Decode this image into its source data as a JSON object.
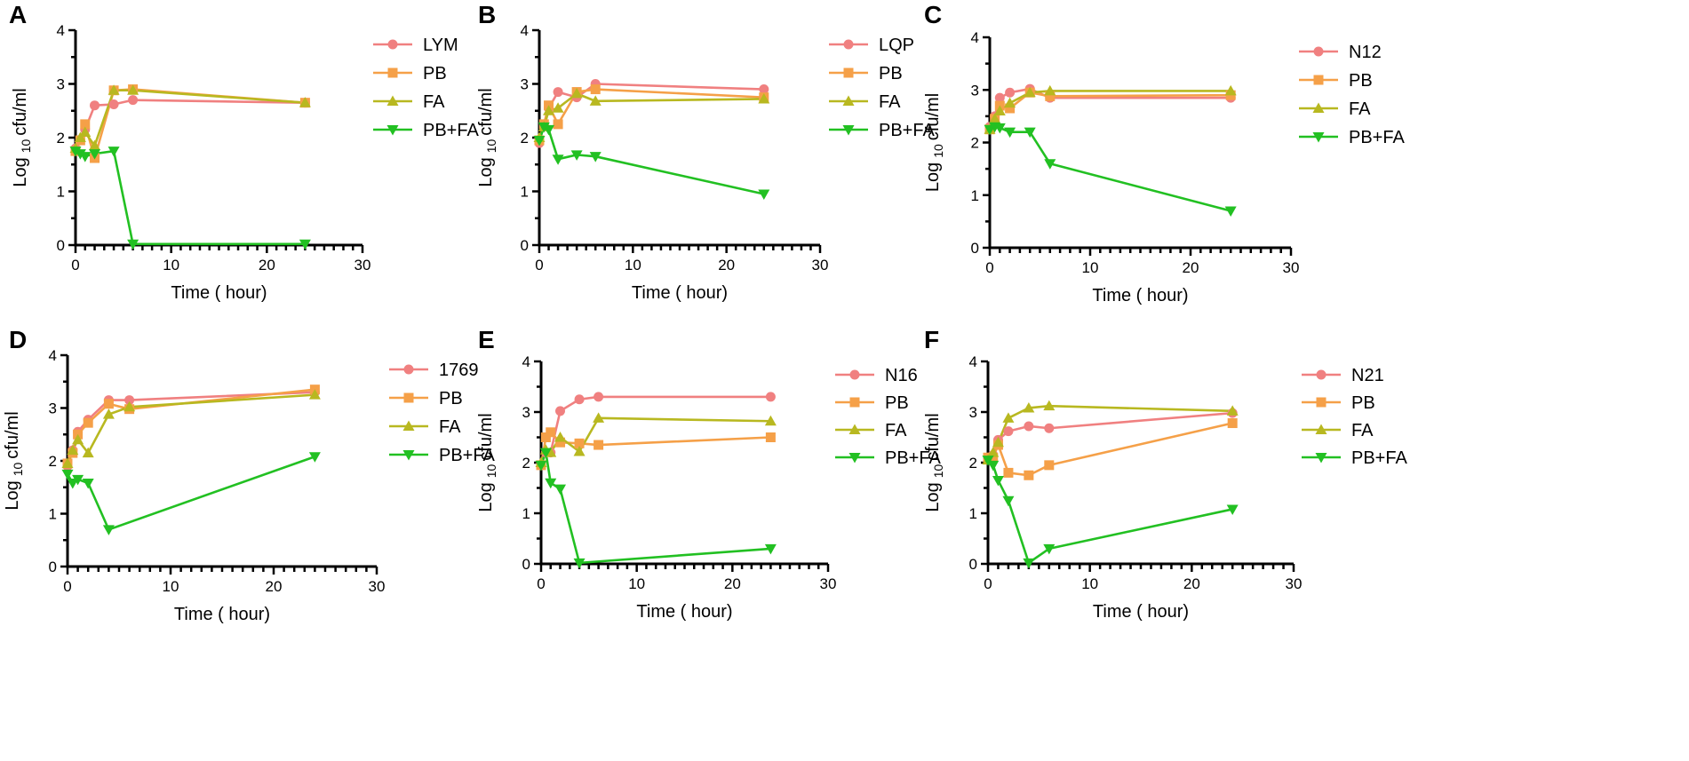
{
  "colors": {
    "strain": "#f08080",
    "pb": "#f5a048",
    "fa": "#b8b820",
    "pbfa": "#22c022"
  },
  "chart_data": [
    {
      "type": "line",
      "panel": "A",
      "xlabel": "Time ( hour)",
      "ylabel_prefix": "Log",
      "ylabel_sub": "10",
      "ylabel_suffix": "cfu/ml",
      "xlim": [
        0,
        30
      ],
      "ylim": [
        0,
        4
      ],
      "xticks": [
        0,
        10,
        20,
        30
      ],
      "yticks": [
        0,
        1,
        2,
        3,
        4
      ],
      "series": [
        {
          "name": "LYM",
          "marker": "circle",
          "color": "#f08080",
          "x": [
            0,
            0.5,
            1,
            2,
            4,
            6,
            24
          ],
          "y": [
            1.8,
            1.95,
            2.15,
            2.6,
            2.62,
            2.7,
            2.65
          ]
        },
        {
          "name": "PB",
          "marker": "square",
          "color": "#f5a048",
          "x": [
            0,
            0.5,
            1,
            2,
            4,
            6,
            24
          ],
          "y": [
            1.75,
            1.95,
            2.25,
            1.62,
            2.88,
            2.9,
            2.65
          ]
        },
        {
          "name": "FA",
          "marker": "triangle-up",
          "color": "#b8b820",
          "x": [
            0,
            0.5,
            1,
            2,
            4,
            6,
            24
          ],
          "y": [
            1.8,
            2.0,
            2.1,
            1.85,
            2.88,
            2.88,
            2.65
          ]
        },
        {
          "name": "PB+FA",
          "marker": "triangle-down",
          "color": "#22c022",
          "x": [
            0,
            0.5,
            1,
            2,
            4,
            6,
            24
          ],
          "y": [
            1.75,
            1.7,
            1.65,
            1.7,
            1.75,
            0.02,
            0.02
          ]
        }
      ]
    },
    {
      "type": "line",
      "panel": "B",
      "xlabel": "Time ( hour)",
      "ylabel_prefix": "Log",
      "ylabel_sub": "10",
      "ylabel_suffix": "cfu/ml",
      "xlim": [
        0,
        30
      ],
      "ylim": [
        0,
        4
      ],
      "xticks": [
        0,
        10,
        20,
        30
      ],
      "yticks": [
        0,
        1,
        2,
        3,
        4
      ],
      "series": [
        {
          "name": "LQP",
          "marker": "circle",
          "color": "#f08080",
          "x": [
            0,
            0.5,
            1,
            2,
            4,
            6,
            24
          ],
          "y": [
            1.9,
            2.25,
            2.55,
            2.85,
            2.75,
            3.0,
            2.9
          ]
        },
        {
          "name": "PB",
          "marker": "square",
          "color": "#f5a048",
          "x": [
            0,
            0.5,
            1,
            2,
            4,
            6,
            24
          ],
          "y": [
            1.95,
            2.25,
            2.6,
            2.25,
            2.85,
            2.9,
            2.75
          ]
        },
        {
          "name": "FA",
          "marker": "triangle-up",
          "color": "#b8b820",
          "x": [
            0,
            0.5,
            1,
            2,
            4,
            6,
            24
          ],
          "y": [
            2.0,
            2.2,
            2.5,
            2.55,
            2.82,
            2.68,
            2.72
          ]
        },
        {
          "name": "PB+FA",
          "marker": "triangle-down",
          "color": "#22c022",
          "x": [
            0,
            0.5,
            1,
            2,
            4,
            6,
            24
          ],
          "y": [
            1.95,
            2.2,
            2.15,
            1.6,
            1.68,
            1.65,
            0.95
          ]
        }
      ]
    },
    {
      "type": "line",
      "panel": "C",
      "xlabel": "Time ( hour)",
      "ylabel_prefix": "Log",
      "ylabel_sub": "10",
      "ylabel_suffix": "cfu/ml",
      "xlim": [
        0,
        30
      ],
      "ylim": [
        0,
        4
      ],
      "xticks": [
        0,
        10,
        20,
        30
      ],
      "yticks": [
        0,
        1,
        2,
        3,
        4
      ],
      "series": [
        {
          "name": "N12",
          "marker": "circle",
          "color": "#f08080",
          "x": [
            0,
            0.5,
            1,
            2,
            4,
            6,
            24
          ],
          "y": [
            2.3,
            2.5,
            2.85,
            2.95,
            3.02,
            2.85,
            2.85
          ]
        },
        {
          "name": "PB",
          "marker": "square",
          "color": "#f5a048",
          "x": [
            0,
            0.5,
            1,
            2,
            4,
            6,
            24
          ],
          "y": [
            2.25,
            2.45,
            2.7,
            2.65,
            2.95,
            2.88,
            2.9
          ]
        },
        {
          "name": "FA",
          "marker": "triangle-up",
          "color": "#b8b820",
          "x": [
            0,
            0.5,
            1,
            2,
            4,
            6,
            24
          ],
          "y": [
            2.25,
            2.45,
            2.6,
            2.75,
            2.95,
            2.98,
            2.98
          ]
        },
        {
          "name": "PB+FA",
          "marker": "triangle-down",
          "color": "#22c022",
          "x": [
            0,
            0.5,
            1,
            2,
            4,
            6,
            24
          ],
          "y": [
            2.25,
            2.3,
            2.28,
            2.2,
            2.2,
            1.6,
            0.7
          ]
        }
      ]
    },
    {
      "type": "line",
      "panel": "D",
      "xlabel": "Time ( hour)",
      "ylabel_prefix": "Log",
      "ylabel_sub": "10",
      "ylabel_suffix": "cfu/ml",
      "xlim": [
        0,
        30
      ],
      "ylim": [
        0,
        4
      ],
      "xticks": [
        0,
        10,
        20,
        30
      ],
      "yticks": [
        0,
        1,
        2,
        3,
        4
      ],
      "series": [
        {
          "name": "1769",
          "marker": "circle",
          "color": "#f08080",
          "x": [
            0,
            0.5,
            1,
            2,
            4,
            6,
            24
          ],
          "y": [
            1.9,
            2.2,
            2.55,
            2.78,
            3.15,
            3.15,
            3.3
          ]
        },
        {
          "name": "PB",
          "marker": "square",
          "color": "#f5a048",
          "x": [
            0,
            0.5,
            1,
            2,
            4,
            6,
            24
          ],
          "y": [
            1.95,
            2.15,
            2.5,
            2.72,
            3.08,
            2.98,
            3.35
          ]
        },
        {
          "name": "FA",
          "marker": "triangle-up",
          "color": "#b8b820",
          "x": [
            0,
            0.5,
            1,
            2,
            4,
            6,
            24
          ],
          "y": [
            1.95,
            2.2,
            2.4,
            2.15,
            2.88,
            3.02,
            3.25
          ]
        },
        {
          "name": "PB+FA",
          "marker": "triangle-down",
          "color": "#22c022",
          "x": [
            0,
            0.5,
            1,
            2,
            4,
            6,
            24
          ],
          "y": [
            1.75,
            1.58,
            1.65,
            1.58,
            0.7,
            null,
            2.08
          ]
        }
      ]
    },
    {
      "type": "line",
      "panel": "E",
      "xlabel": "Time ( hour)",
      "ylabel_prefix": "Log",
      "ylabel_sub": "10",
      "ylabel_suffix": "cfu/ml",
      "xlim": [
        0,
        30
      ],
      "ylim": [
        0,
        4
      ],
      "xticks": [
        0,
        10,
        20,
        30
      ],
      "yticks": [
        0,
        1,
        2,
        3,
        4
      ],
      "series": [
        {
          "name": "N16",
          "marker": "circle",
          "color": "#f08080",
          "x": [
            0,
            0.5,
            1,
            2,
            4,
            6,
            24
          ],
          "y": [
            1.95,
            2.2,
            2.2,
            3.02,
            3.25,
            3.3,
            3.3
          ]
        },
        {
          "name": "PB",
          "marker": "square",
          "color": "#f5a048",
          "x": [
            0,
            0.5,
            1,
            2,
            4,
            6,
            24
          ],
          "y": [
            1.95,
            2.5,
            2.6,
            2.4,
            2.38,
            2.35,
            2.5
          ]
        },
        {
          "name": "FA",
          "marker": "triangle-up",
          "color": "#b8b820",
          "x": [
            0,
            0.5,
            1,
            2,
            4,
            6,
            24
          ],
          "y": [
            2.0,
            2.25,
            2.2,
            2.5,
            2.22,
            2.88,
            2.82
          ]
        },
        {
          "name": "PB+FA",
          "marker": "triangle-down",
          "color": "#22c022",
          "x": [
            0,
            0.5,
            1,
            2,
            4,
            6,
            24
          ],
          "y": [
            1.95,
            2.2,
            1.6,
            1.48,
            0.02,
            null,
            0.3
          ]
        }
      ]
    },
    {
      "type": "line",
      "panel": "F",
      "xlabel": "Time ( hour)",
      "ylabel_prefix": "Log",
      "ylabel_sub": "10",
      "ylabel_suffix": "cfu/ml",
      "xlim": [
        0,
        30
      ],
      "ylim": [
        0,
        4
      ],
      "xticks": [
        0,
        10,
        20,
        30
      ],
      "yticks": [
        0,
        1,
        2,
        3,
        4
      ],
      "series": [
        {
          "name": "N21",
          "marker": "circle",
          "color": "#f08080",
          "x": [
            0,
            0.5,
            1,
            2,
            4,
            6,
            24
          ],
          "y": [
            2.1,
            2.15,
            2.45,
            2.62,
            2.72,
            2.68,
            2.98
          ]
        },
        {
          "name": "PB",
          "marker": "square",
          "color": "#f5a048",
          "x": [
            0,
            0.5,
            1,
            2,
            4,
            6,
            24
          ],
          "y": [
            2.1,
            2.1,
            2.35,
            1.8,
            1.75,
            1.95,
            2.78
          ]
        },
        {
          "name": "FA",
          "marker": "triangle-up",
          "color": "#b8b820",
          "x": [
            0,
            0.5,
            1,
            2,
            4,
            6,
            24
          ],
          "y": [
            2.05,
            2.2,
            2.4,
            2.88,
            3.08,
            3.12,
            3.02
          ]
        },
        {
          "name": "PB+FA",
          "marker": "triangle-down",
          "color": "#22c022",
          "x": [
            0,
            0.5,
            1,
            2,
            4,
            6,
            24
          ],
          "y": [
            2.05,
            1.95,
            1.65,
            1.25,
            0.02,
            0.3,
            1.08
          ]
        }
      ]
    }
  ]
}
